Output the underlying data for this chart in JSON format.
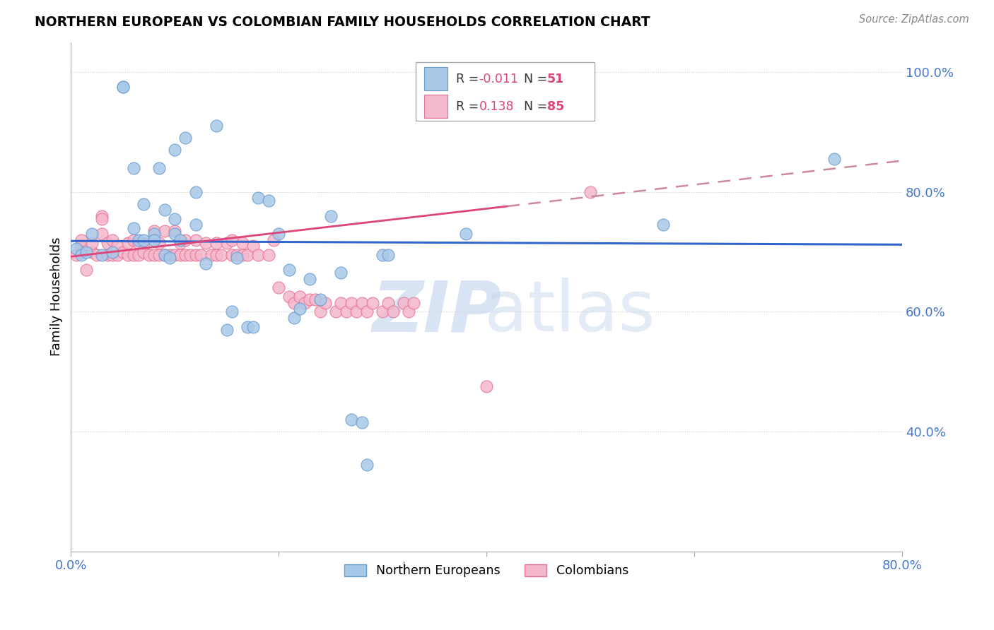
{
  "title": "NORTHERN EUROPEAN VS COLOMBIAN FAMILY HOUSEHOLDS CORRELATION CHART",
  "source": "Source: ZipAtlas.com",
  "ylabel": "Family Households",
  "legend_blue_r": "-0.011",
  "legend_blue_n": "51",
  "legend_pink_r": "0.138",
  "legend_pink_n": "85",
  "legend_label_blue": "Northern Europeans",
  "legend_label_pink": "Colombians",
  "xlim": [
    0.0,
    0.8
  ],
  "ylim": [
    0.2,
    1.05
  ],
  "blue_scatter_x": [
    0.005,
    0.01,
    0.015,
    0.02,
    0.03,
    0.04,
    0.05,
    0.05,
    0.06,
    0.06,
    0.065,
    0.07,
    0.07,
    0.08,
    0.08,
    0.085,
    0.09,
    0.09,
    0.095,
    0.1,
    0.1,
    0.1,
    0.105,
    0.11,
    0.12,
    0.12,
    0.13,
    0.14,
    0.15,
    0.155,
    0.16,
    0.17,
    0.175,
    0.18,
    0.19,
    0.2,
    0.21,
    0.215,
    0.22,
    0.23,
    0.24,
    0.25,
    0.26,
    0.27,
    0.28,
    0.285,
    0.3,
    0.305,
    0.38,
    0.57,
    0.735
  ],
  "blue_scatter_y": [
    0.705,
    0.695,
    0.7,
    0.73,
    0.695,
    0.7,
    0.975,
    0.975,
    0.84,
    0.74,
    0.72,
    0.78,
    0.72,
    0.73,
    0.72,
    0.84,
    0.695,
    0.77,
    0.69,
    0.755,
    0.73,
    0.87,
    0.72,
    0.89,
    0.745,
    0.8,
    0.68,
    0.91,
    0.57,
    0.6,
    0.69,
    0.575,
    0.575,
    0.79,
    0.785,
    0.73,
    0.67,
    0.59,
    0.605,
    0.655,
    0.62,
    0.76,
    0.665,
    0.42,
    0.415,
    0.345,
    0.695,
    0.695,
    0.73,
    0.745,
    0.855
  ],
  "pink_scatter_x": [
    0.005,
    0.01,
    0.01,
    0.01,
    0.015,
    0.02,
    0.02,
    0.025,
    0.03,
    0.03,
    0.03,
    0.035,
    0.035,
    0.04,
    0.04,
    0.045,
    0.045,
    0.05,
    0.055,
    0.055,
    0.06,
    0.06,
    0.065,
    0.065,
    0.07,
    0.07,
    0.075,
    0.08,
    0.08,
    0.085,
    0.085,
    0.09,
    0.09,
    0.095,
    0.1,
    0.1,
    0.105,
    0.105,
    0.11,
    0.11,
    0.115,
    0.12,
    0.12,
    0.125,
    0.13,
    0.135,
    0.14,
    0.14,
    0.145,
    0.15,
    0.155,
    0.155,
    0.16,
    0.165,
    0.165,
    0.17,
    0.175,
    0.18,
    0.19,
    0.195,
    0.2,
    0.21,
    0.215,
    0.22,
    0.225,
    0.23,
    0.235,
    0.24,
    0.245,
    0.255,
    0.26,
    0.265,
    0.27,
    0.275,
    0.28,
    0.285,
    0.29,
    0.3,
    0.305,
    0.31,
    0.32,
    0.325,
    0.33,
    0.4,
    0.5
  ],
  "pink_scatter_y": [
    0.695,
    0.7,
    0.71,
    0.72,
    0.67,
    0.7,
    0.715,
    0.695,
    0.76,
    0.73,
    0.755,
    0.695,
    0.715,
    0.695,
    0.72,
    0.695,
    0.71,
    0.7,
    0.695,
    0.715,
    0.695,
    0.72,
    0.695,
    0.715,
    0.7,
    0.715,
    0.695,
    0.695,
    0.735,
    0.695,
    0.715,
    0.695,
    0.735,
    0.695,
    0.695,
    0.735,
    0.695,
    0.715,
    0.695,
    0.72,
    0.695,
    0.695,
    0.72,
    0.695,
    0.715,
    0.695,
    0.695,
    0.715,
    0.695,
    0.715,
    0.695,
    0.72,
    0.695,
    0.695,
    0.715,
    0.695,
    0.71,
    0.695,
    0.695,
    0.72,
    0.64,
    0.625,
    0.615,
    0.625,
    0.615,
    0.62,
    0.62,
    0.6,
    0.615,
    0.6,
    0.615,
    0.6,
    0.615,
    0.6,
    0.615,
    0.6,
    0.615,
    0.6,
    0.615,
    0.6,
    0.615,
    0.6,
    0.615,
    0.475,
    0.8
  ],
  "blue_color": "#a8c8e8",
  "pink_color": "#f4b8cc",
  "blue_edge_color": "#6699cc",
  "pink_edge_color": "#e87090",
  "trendline_blue_color": "#3366cc",
  "trendline_pink_color": "#dd4477",
  "trendline_pink_dashed_color": "#cc8899",
  "watermark_zip_color": "#c8d8f0",
  "watermark_atlas_color": "#c8d8f0",
  "background_color": "#ffffff",
  "grid_color": "#cccccc"
}
